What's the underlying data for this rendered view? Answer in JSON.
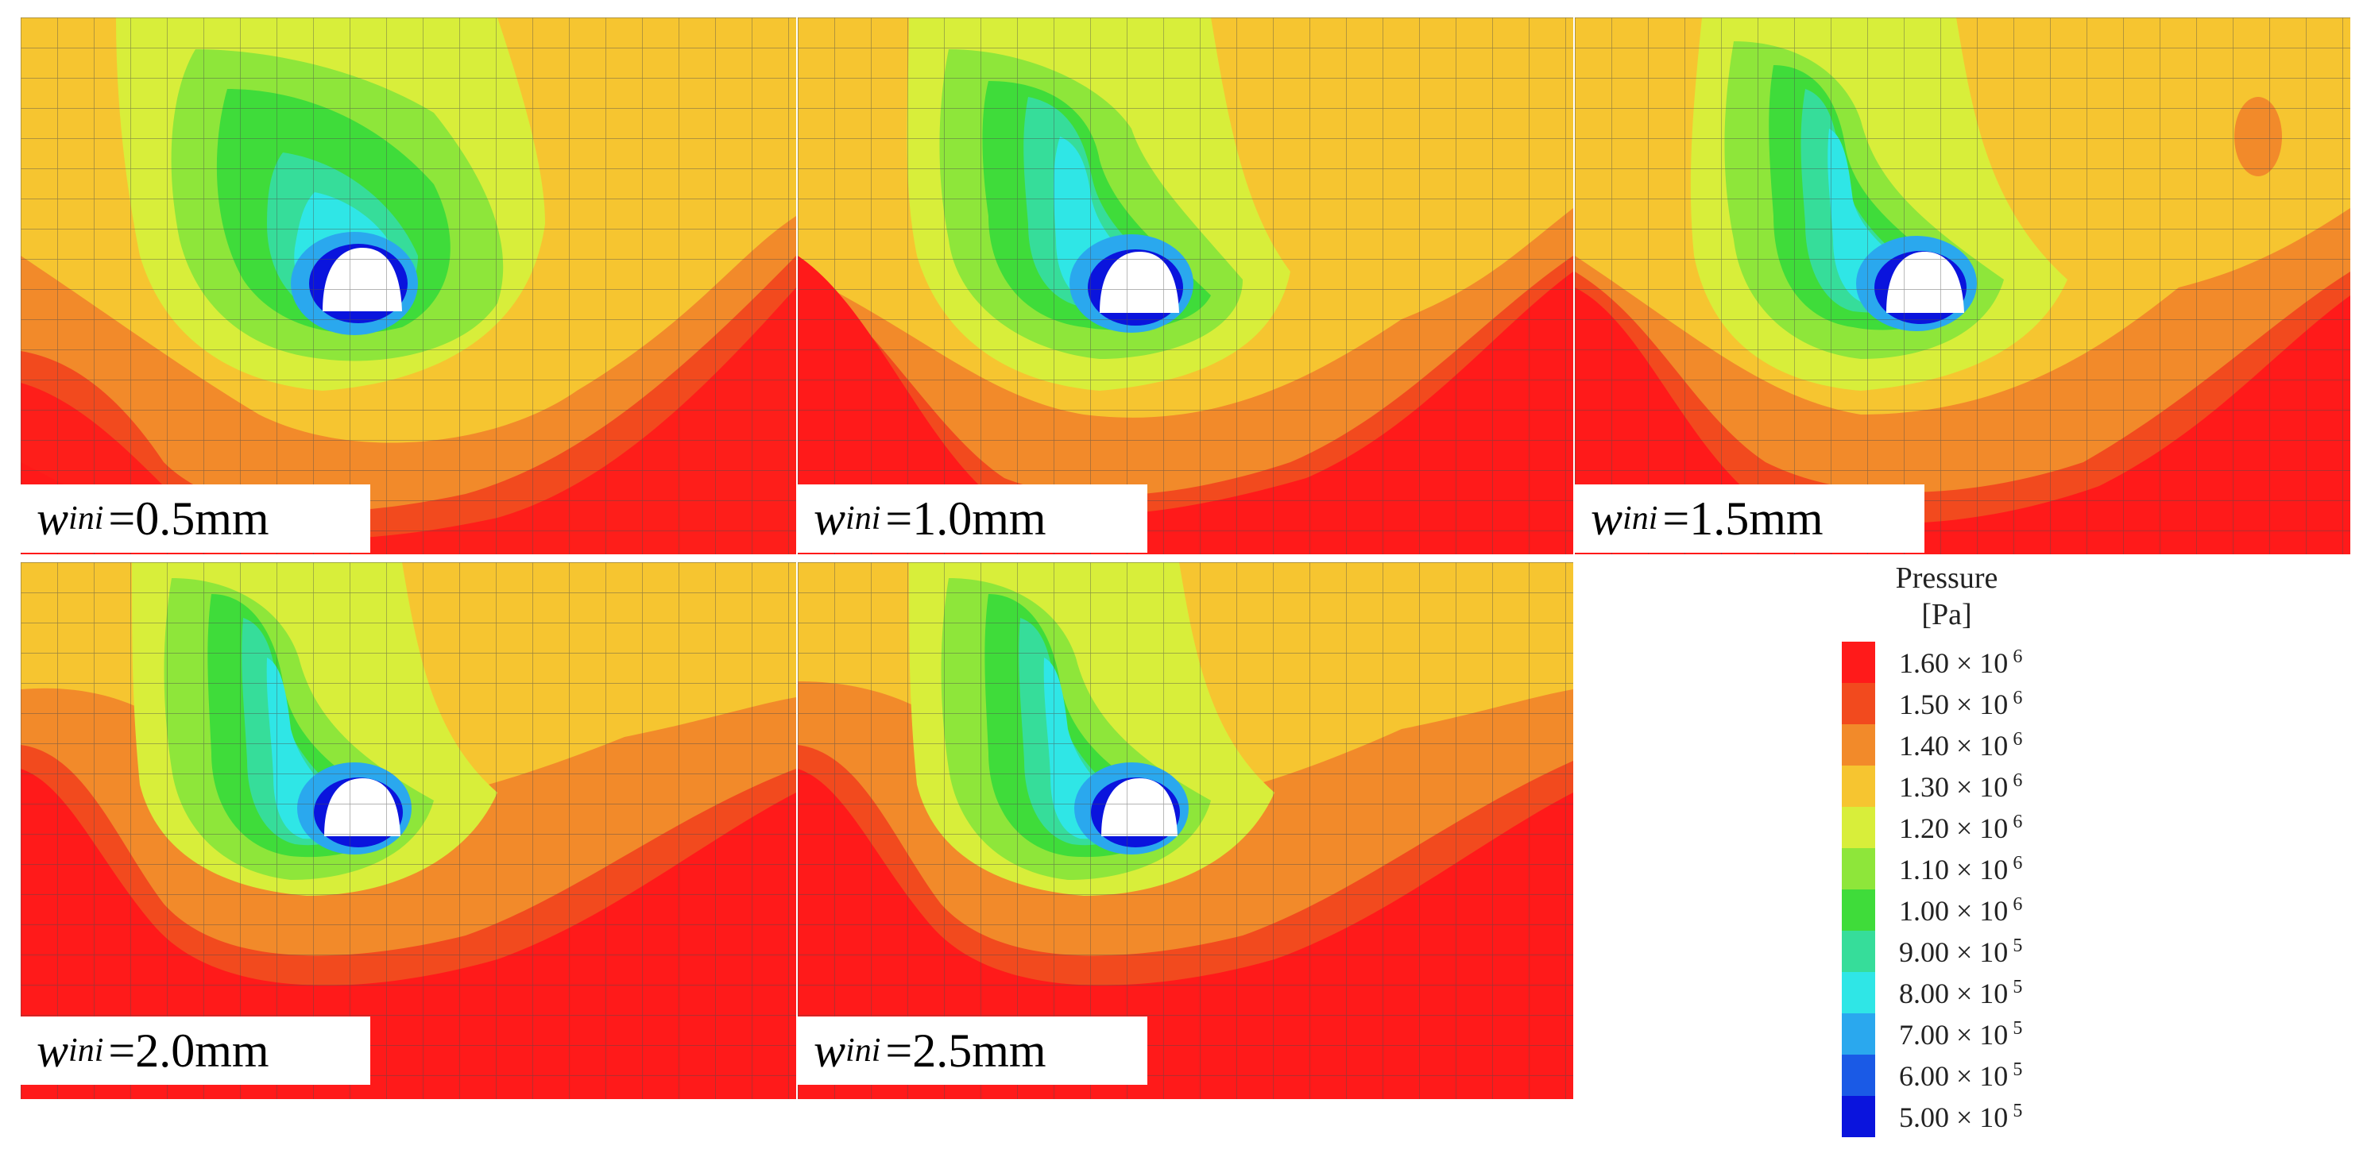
{
  "panels": [
    {
      "w": "w",
      "sub": "ini",
      "value": "=0.5mm"
    },
    {
      "w": "w",
      "sub": "ini",
      "value": "=1.0mm"
    },
    {
      "w": "w",
      "sub": "ini",
      "value": "=1.5mm"
    },
    {
      "w": "w",
      "sub": "ini",
      "value": "=2.0mm"
    },
    {
      "w": "w",
      "sub": "ini",
      "value": "=2.5mm"
    }
  ],
  "legend": {
    "title_line1": "Pressure",
    "title_line2": "[Pa]",
    "entries": [
      {
        "label": "1.60 × 10",
        "exp": "6",
        "color": "#ff1a1a"
      },
      {
        "label": "1.50 × 10",
        "exp": "6",
        "color": "#f24a1e"
      },
      {
        "label": "1.40 × 10",
        "exp": "6",
        "color": "#f28a2a"
      },
      {
        "label": "1.30 × 10",
        "exp": "6",
        "color": "#f6c530"
      },
      {
        "label": "1.20 × 10",
        "exp": "6",
        "color": "#d8ee3a"
      },
      {
        "label": "1.10 × 10",
        "exp": "6",
        "color": "#8ee63a"
      },
      {
        "label": "1.00 × 10",
        "exp": "6",
        "color": "#3fdc3a"
      },
      {
        "label": "9.00 × 10",
        "exp": "5",
        "color": "#36dd9a"
      },
      {
        "label": "8.00 × 10",
        "exp": "5",
        "color": "#2fe6e6"
      },
      {
        "label": "7.00 × 10",
        "exp": "5",
        "color": "#2aa8ee"
      },
      {
        "label": "6.00 × 10",
        "exp": "5",
        "color": "#1a5ae6"
      },
      {
        "label": "5.00 × 10",
        "exp": "5",
        "color": "#0a14dd"
      }
    ]
  }
}
